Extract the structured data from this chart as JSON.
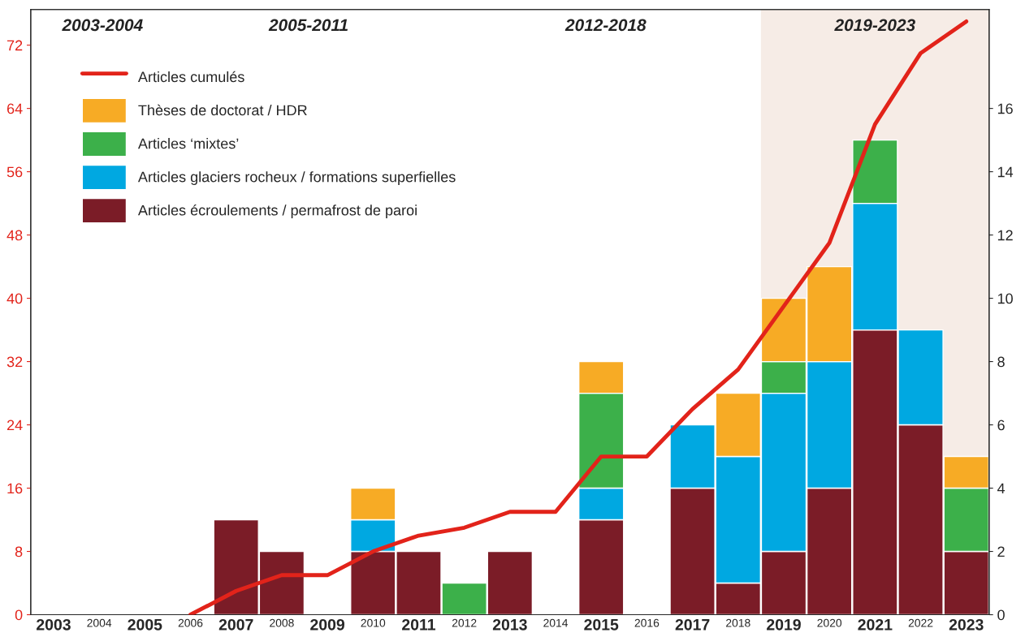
{
  "chart_data": {
    "type": "bar",
    "stacked": true,
    "categories": [
      "2003",
      "2004",
      "2005",
      "2006",
      "2007",
      "2008",
      "2009",
      "2010",
      "2011",
      "2012",
      "2013",
      "2014",
      "2015",
      "2016",
      "2017",
      "2018",
      "2019",
      "2020",
      "2021",
      "2022",
      "2023"
    ],
    "series": [
      {
        "name": "Articles cumulés",
        "type": "line",
        "color": "#e2231a",
        "axis": "y",
        "values": [
          null,
          null,
          null,
          0,
          3,
          5,
          5,
          8,
          10,
          11,
          13,
          13,
          20,
          20,
          26,
          31,
          39,
          47,
          62,
          71,
          75
        ]
      },
      {
        "name": "Articles écroulements / permafrost de paroi",
        "color": "#7b1c27",
        "axis": "y2",
        "values": [
          null,
          null,
          null,
          null,
          3,
          2,
          null,
          2,
          2,
          null,
          2,
          null,
          3,
          null,
          4,
          1,
          2,
          4,
          9,
          6,
          2
        ]
      },
      {
        "name": "Articles glaciers rocheux / formations superfielles",
        "color": "#00a8e1",
        "axis": "y2",
        "values": [
          null,
          null,
          null,
          null,
          null,
          null,
          null,
          1,
          null,
          null,
          null,
          null,
          1,
          null,
          2,
          4,
          5,
          4,
          4,
          3,
          null
        ]
      },
      {
        "name": "Articles ‘mixtes’",
        "color": "#3cb04a",
        "axis": "y2",
        "values": [
          null,
          null,
          null,
          null,
          null,
          null,
          null,
          null,
          null,
          1,
          null,
          null,
          3,
          null,
          null,
          null,
          1,
          null,
          2,
          null,
          2
        ]
      },
      {
        "name": "Thèses de doctorat / HDR",
        "color": "#f7ab25",
        "axis": "y2",
        "values": [
          null,
          null,
          null,
          null,
          null,
          null,
          null,
          1,
          null,
          null,
          null,
          null,
          1,
          null,
          null,
          2,
          2,
          3,
          null,
          null,
          1
        ]
      }
    ],
    "ylim": [
      0,
      76.5
    ],
    "yticks": [
      0,
      8,
      16,
      24,
      32,
      40,
      48,
      56,
      64,
      72
    ],
    "y2lim": [
      0,
      19.125
    ],
    "y2ticks": [
      0,
      2,
      4,
      6,
      8,
      10,
      12,
      14,
      16
    ],
    "annotations": [
      "2003-2004",
      "2005-2011",
      "2012-2018"
    ],
    "bands": [
      {
        "axis": "x",
        "from": "2019",
        "to": "2023",
        "label": "2019-2023",
        "color": "#f6ece6"
      }
    ],
    "legend": "top left",
    "grid": false
  }
}
